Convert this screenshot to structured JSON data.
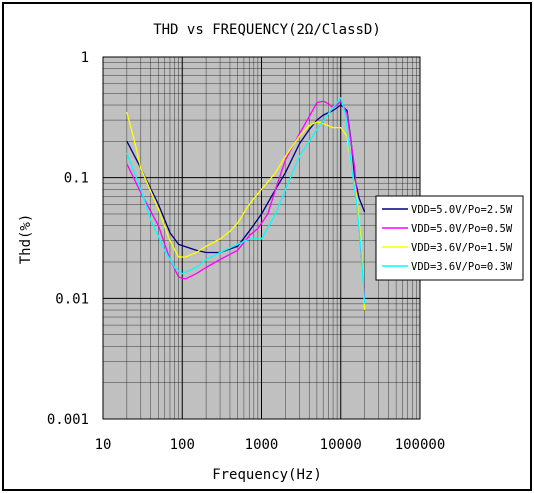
{
  "chart_data": {
    "type": "line",
    "title": "THD vs FREQUENCY(2Ω/ClassD)",
    "xlabel": "Frequency(Hz)",
    "ylabel": "Thd(%)",
    "x_scale": "log",
    "y_scale": "log",
    "xlim": [
      10,
      100000
    ],
    "ylim": [
      0.001,
      1
    ],
    "x_ticks": [
      {
        "value": 10,
        "label": "10"
      },
      {
        "value": 100,
        "label": "100"
      },
      {
        "value": 1000,
        "label": "1000"
      },
      {
        "value": 10000,
        "label": "10000"
      },
      {
        "value": 100000,
        "label": "100000"
      }
    ],
    "y_ticks": [
      {
        "value": 1,
        "label": "1"
      },
      {
        "value": 0.1,
        "label": "0.1"
      },
      {
        "value": 0.01,
        "label": "0.01"
      },
      {
        "value": 0.001,
        "label": "0.001"
      }
    ],
    "grid": true,
    "plot_background": "#c0c0c0",
    "legend_position": "right",
    "series": [
      {
        "name": "VDD=5.0V/Po=2.5W",
        "color": "#000080",
        "points": [
          [
            20,
            0.2
          ],
          [
            30,
            0.12
          ],
          [
            50,
            0.06
          ],
          [
            70,
            0.035
          ],
          [
            90,
            0.028
          ],
          [
            150,
            0.025
          ],
          [
            200,
            0.024
          ],
          [
            300,
            0.024
          ],
          [
            500,
            0.027
          ],
          [
            700,
            0.036
          ],
          [
            1000,
            0.05
          ],
          [
            1500,
            0.08
          ],
          [
            2000,
            0.11
          ],
          [
            3000,
            0.19
          ],
          [
            4000,
            0.25
          ],
          [
            5000,
            0.3
          ],
          [
            6000,
            0.33
          ],
          [
            8000,
            0.36
          ],
          [
            10000,
            0.4
          ],
          [
            12000,
            0.36
          ],
          [
            13500,
            0.2
          ],
          [
            15000,
            0.1
          ],
          [
            17000,
            0.068
          ],
          [
            20000,
            0.052
          ]
        ]
      },
      {
        "name": "VDD=5.0V/Po=0.5W",
        "color": "#ff00ff",
        "points": [
          [
            20,
            0.13
          ],
          [
            30,
            0.075
          ],
          [
            50,
            0.04
          ],
          [
            70,
            0.021
          ],
          [
            90,
            0.015
          ],
          [
            110,
            0.0145
          ],
          [
            150,
            0.016
          ],
          [
            200,
            0.018
          ],
          [
            300,
            0.021
          ],
          [
            500,
            0.025
          ],
          [
            700,
            0.033
          ],
          [
            900,
            0.038
          ],
          [
            1200,
            0.05
          ],
          [
            1500,
            0.08
          ],
          [
            2000,
            0.14
          ],
          [
            3000,
            0.23
          ],
          [
            4000,
            0.32
          ],
          [
            5000,
            0.42
          ],
          [
            6000,
            0.43
          ],
          [
            7000,
            0.41
          ],
          [
            8000,
            0.38
          ],
          [
            10000,
            0.43
          ],
          [
            12000,
            0.34
          ],
          [
            15000,
            0.12
          ],
          [
            17000,
            0.04
          ],
          [
            20000,
            0.01
          ]
        ]
      },
      {
        "name": "VDD=3.6V/Po=1.5W",
        "color": "#ffff00",
        "points": [
          [
            20,
            0.35
          ],
          [
            25,
            0.2
          ],
          [
            30,
            0.12
          ],
          [
            50,
            0.055
          ],
          [
            70,
            0.03
          ],
          [
            90,
            0.022
          ],
          [
            110,
            0.022
          ],
          [
            150,
            0.024
          ],
          [
            200,
            0.027
          ],
          [
            300,
            0.031
          ],
          [
            400,
            0.036
          ],
          [
            500,
            0.042
          ],
          [
            700,
            0.06
          ],
          [
            1000,
            0.08
          ],
          [
            1500,
            0.11
          ],
          [
            2000,
            0.15
          ],
          [
            3000,
            0.22
          ],
          [
            4000,
            0.27
          ],
          [
            5000,
            0.29
          ],
          [
            6000,
            0.28
          ],
          [
            8000,
            0.26
          ],
          [
            10000,
            0.26
          ],
          [
            12000,
            0.22
          ],
          [
            14000,
            0.11
          ],
          [
            16000,
            0.07
          ],
          [
            18000,
            0.03
          ],
          [
            20000,
            0.008
          ]
        ]
      },
      {
        "name": "VDD=3.6V/Po=0.3W",
        "color": "#00ffff",
        "points": [
          [
            20,
            0.16
          ],
          [
            30,
            0.08
          ],
          [
            40,
            0.045
          ],
          [
            60,
            0.025
          ],
          [
            80,
            0.018
          ],
          [
            100,
            0.016
          ],
          [
            150,
            0.018
          ],
          [
            200,
            0.021
          ],
          [
            300,
            0.024
          ],
          [
            500,
            0.028
          ],
          [
            700,
            0.031
          ],
          [
            1000,
            0.031
          ],
          [
            1500,
            0.05
          ],
          [
            2000,
            0.08
          ],
          [
            3000,
            0.15
          ],
          [
            5000,
            0.25
          ],
          [
            7000,
            0.34
          ],
          [
            10000,
            0.46
          ],
          [
            11500,
            0.33
          ],
          [
            12500,
            0.2
          ],
          [
            14000,
            0.11
          ],
          [
            16000,
            0.06
          ],
          [
            18000,
            0.025
          ],
          [
            20000,
            0.009
          ]
        ]
      }
    ]
  }
}
